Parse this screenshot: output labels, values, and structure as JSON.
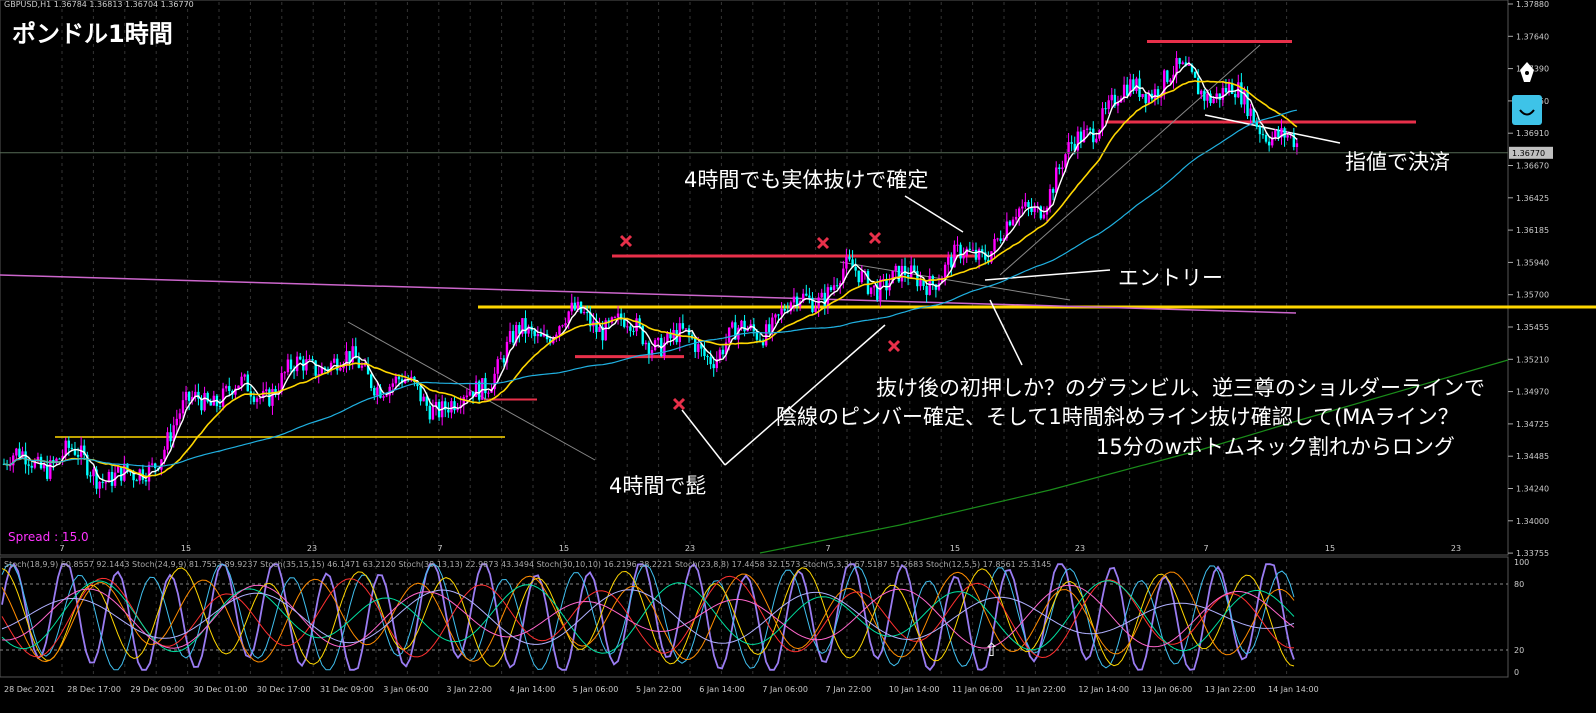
{
  "header": {
    "title": "ポンドル1時間",
    "symbol_info": "GBPUSD,H1  1.36784 1.36813 1.36704 1.36770",
    "spread": "Spread : 15.0"
  },
  "annotations": {
    "confirm_4h": "4時間でも実体抜けで確定",
    "exit_limit": "指値で決済",
    "entry": "エントリー",
    "note_line1": "抜け後の初押しか？のグランビル、逆三尊のショルダーラインで",
    "note_line2": "陰線のピンバー確定、そして1時間斜めライン抜け確認して(MAライン？",
    "note_line3": "15分のwボトムネック割れからロング",
    "wick_4h": "4時間で髭",
    "up_arrow": "⇧"
  },
  "price_axis": {
    "labels": [
      "1.37880",
      "1.37640",
      "1.37390",
      "1.37150",
      "1.36910",
      "1.36670",
      "1.36425",
      "1.36185",
      "1.35940",
      "1.35700",
      "1.35455",
      "1.35210",
      "1.34970",
      "1.34725",
      "1.34485",
      "1.34240",
      "1.34000",
      "1.33755"
    ],
    "current_price": "1.36770",
    "current_price_color": "#c0c0c0"
  },
  "time_axis": {
    "labels": [
      "28 Dec 2021",
      "28 Dec 17:00",
      "29 Dec 09:00",
      "30 Dec 01:00",
      "30 Dec 17:00",
      "31 Dec 09:00",
      "3 Jan 06:00",
      "3 Jan 22:00",
      "4 Jan 14:00",
      "5 Jan 06:00",
      "5 Jan 22:00",
      "6 Jan 14:00",
      "7 Jan 06:00",
      "7 Jan 22:00",
      "10 Jan 14:00",
      "11 Jan 06:00",
      "11 Jan 22:00",
      "12 Jan 14:00",
      "13 Jan 06:00",
      "13 Jan 22:00",
      "14 Jan 14:00"
    ],
    "day_labels": [
      "7",
      "15",
      "23",
      "7",
      "15",
      "23",
      "7",
      "15",
      "23",
      "7",
      "15",
      "23"
    ]
  },
  "stoch_panel": {
    "legend": "Stoch(18,9,9) 60.8557 92.1443  Stoch(24,9,9) 81.7553 89.9237  Stoch(35,15,15) 46.1471 63.2120  Stoch(38,13,13) 22.9873 43.3494  Stoch(30,10,10) 16.2196 28.2221  Stoch(23,8,8) 17.4458 32.1573  Stoch(5,3,3) 67.5187 51.2683  Stoch(12,5,5) 17.8561 25.3145",
    "levels": [
      "100",
      "80",
      "20",
      "0"
    ]
  },
  "colors": {
    "background": "#000000",
    "bull_candle": "#ff00ff",
    "bear_candle": "#00ffff",
    "resistance": "#e8304a",
    "support": "#ffd700",
    "ma_fast": "#ffffff",
    "ma_mid": "#ffd700",
    "ma_slow": "#20b0e0",
    "ma_long": "#1a8c1a",
    "trendline_pink": "#cc66cc",
    "cross_marker": "#e8304a"
  },
  "icons": [
    "pen-icon",
    "smile-icon"
  ],
  "chart_data": {
    "type": "candlestick",
    "symbol": "GBPUSD",
    "timeframe": "H1",
    "close_path": [
      [
        "28 Dec 2021",
        1.3445
      ],
      [
        "28 Dec 17:00",
        1.345
      ],
      [
        "29 Dec 09:00",
        1.343
      ],
      [
        "30 Dec 01:00",
        1.3495
      ],
      [
        "30 Dec 17:00",
        1.35
      ],
      [
        "31 Dec 09:00",
        1.3525
      ],
      [
        "3 Jan 06:00",
        1.3505
      ],
      [
        "3 Jan 22:00",
        1.3485
      ],
      [
        "4 Jan 14:00",
        1.354
      ],
      [
        "5 Jan 06:00",
        1.3555
      ],
      [
        "5 Jan 22:00",
        1.354
      ],
      [
        "6 Jan 14:00",
        1.353
      ],
      [
        "7 Jan 06:00",
        1.3555
      ],
      [
        "7 Jan 22:00",
        1.3585
      ],
      [
        "10 Jan 14:00",
        1.358
      ],
      [
        "11 Jan 06:00",
        1.36
      ],
      [
        "11 Jan 22:00",
        1.364
      ],
      [
        "12 Jan 14:00",
        1.371
      ],
      [
        "13 Jan 06:00",
        1.3735
      ],
      [
        "13 Jan 22:00",
        1.372
      ],
      [
        "14 Jan 14:00",
        1.3677
      ]
    ],
    "horizontal_lines": [
      {
        "color": "red",
        "price": 1.376
      },
      {
        "color": "red",
        "price": 1.37
      },
      {
        "color": "red",
        "price": 1.36
      },
      {
        "color": "red",
        "price": 1.3525
      },
      {
        "color": "yellow",
        "price": 1.3562
      },
      {
        "color": "yellow",
        "price": 1.3465
      }
    ],
    "cross_markers": [
      1.361,
      1.3605,
      1.361,
      1.3525,
      1.3485
    ],
    "indicator": {
      "type": "stochastic",
      "ylim": [
        0,
        100
      ],
      "levels": [
        80,
        20
      ]
    },
    "ylim": [
      1.33755,
      1.3788
    ]
  }
}
